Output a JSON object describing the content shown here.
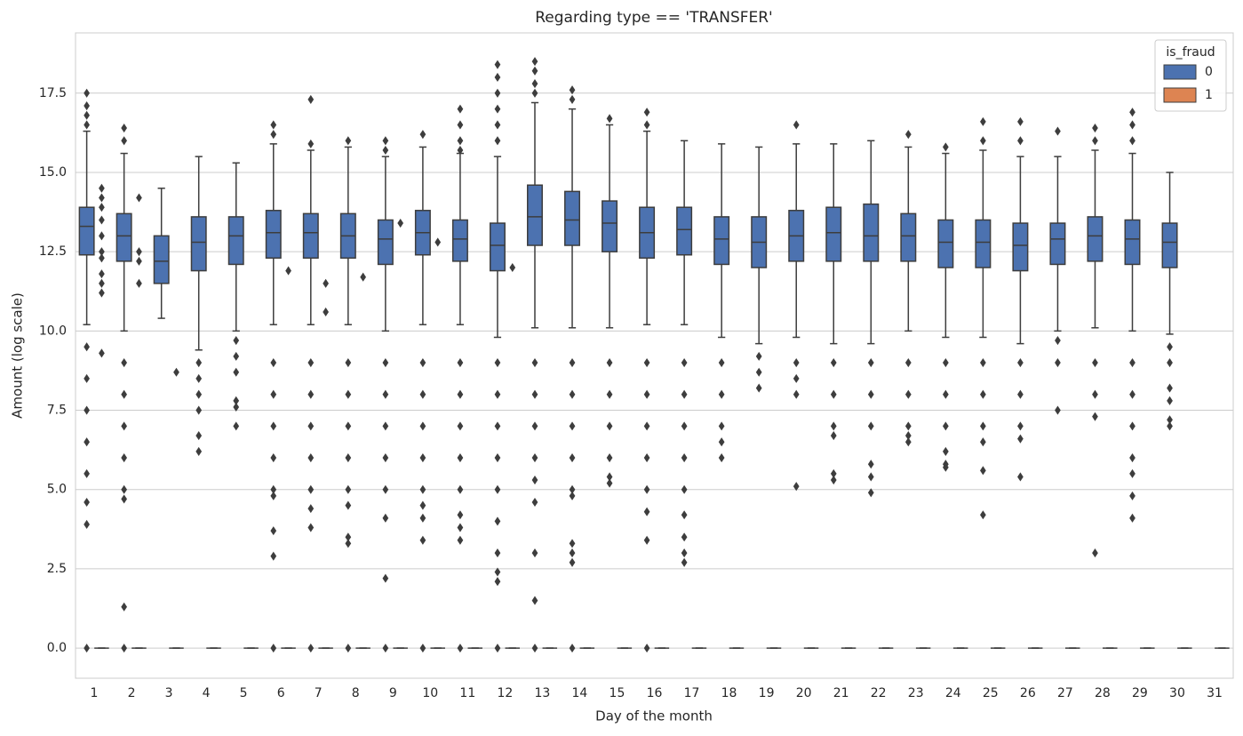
{
  "chart_data": {
    "type": "box",
    "title": "Regarding type == 'TRANSFER'",
    "x_label": "Day of the month",
    "y_label": "Amount (log scale)",
    "categories": [
      "1",
      "2",
      "3",
      "4",
      "5",
      "6",
      "7",
      "8",
      "9",
      "10",
      "11",
      "12",
      "13",
      "14",
      "15",
      "16",
      "17",
      "18",
      "19",
      "20",
      "21",
      "22",
      "23",
      "24",
      "25",
      "26",
      "27",
      "28",
      "29",
      "30",
      "31"
    ],
    "ylim": [
      -0.95,
      19.4
    ],
    "yticks": [
      {
        "value": 0,
        "label": "0.0"
      },
      {
        "value": 2.5,
        "label": "2.5"
      },
      {
        "value": 5,
        "label": "5.0"
      },
      {
        "value": 7.5,
        "label": "7.5"
      },
      {
        "value": 10,
        "label": "10.0"
      },
      {
        "value": 12.5,
        "label": "12.5"
      },
      {
        "value": 15,
        "label": "15.0"
      },
      {
        "value": 17.5,
        "label": "17.5"
      }
    ],
    "grid": true,
    "legend_title": "is_fraud",
    "legend_position": "upper right",
    "series": [
      {
        "name": "0",
        "color": "#4c72b0",
        "q1": [
          12.4,
          12.2,
          11.5,
          11.9,
          12.1,
          12.3,
          12.3,
          12.3,
          12.1,
          12.4,
          12.2,
          11.9,
          12.7,
          12.7,
          12.5,
          12.3,
          12.4,
          12.1,
          12.0,
          12.2,
          12.2,
          12.2,
          12.2,
          12.0,
          12.0,
          11.9,
          12.1,
          12.2,
          12.1,
          12.0,
          null
        ],
        "median": [
          13.3,
          13.0,
          12.2,
          12.8,
          13.0,
          13.1,
          13.1,
          13.0,
          12.9,
          13.1,
          12.9,
          12.7,
          13.6,
          13.5,
          13.4,
          13.1,
          13.2,
          12.9,
          12.8,
          13.0,
          13.1,
          13.0,
          13.0,
          12.8,
          12.8,
          12.7,
          12.9,
          13.0,
          12.9,
          12.8,
          null
        ],
        "q3": [
          13.9,
          13.7,
          13.0,
          13.6,
          13.6,
          13.8,
          13.7,
          13.7,
          13.5,
          13.8,
          13.5,
          13.4,
          14.6,
          14.4,
          14.1,
          13.9,
          13.9,
          13.6,
          13.6,
          13.8,
          13.9,
          14.0,
          13.7,
          13.5,
          13.5,
          13.4,
          13.4,
          13.6,
          13.5,
          13.4,
          null
        ],
        "whislo": [
          10.2,
          10.0,
          10.4,
          9.4,
          10.0,
          10.2,
          10.2,
          10.2,
          10.0,
          10.2,
          10.2,
          9.8,
          10.1,
          10.1,
          10.1,
          10.2,
          10.2,
          9.8,
          9.6,
          9.8,
          9.6,
          9.6,
          10.0,
          9.8,
          9.8,
          9.6,
          10.0,
          10.1,
          10.0,
          9.9,
          null
        ],
        "whishi": [
          16.3,
          15.6,
          14.5,
          15.5,
          15.3,
          15.9,
          15.7,
          15.8,
          15.5,
          15.8,
          15.6,
          15.5,
          17.2,
          17.0,
          16.5,
          16.3,
          16.0,
          15.9,
          15.8,
          15.9,
          15.9,
          16.0,
          15.8,
          15.6,
          15.7,
          15.5,
          15.5,
          15.7,
          15.6,
          15.0,
          null
        ],
        "outliers": [
          [
            17.5,
            17.1,
            16.8,
            16.5,
            9.5,
            8.5,
            7.5,
            6.5,
            5.5,
            4.6,
            3.9,
            0
          ],
          [
            16.4,
            16.0,
            9.0,
            8.0,
            7.0,
            6.0,
            5.0,
            4.7,
            1.3,
            0
          ],
          [],
          [
            9.0,
            8.5,
            8.0,
            7.5,
            6.7,
            6.2
          ],
          [
            9.7,
            9.2,
            8.7,
            7.8,
            7.6,
            7.0
          ],
          [
            16.5,
            16.2,
            9.0,
            8.0,
            7.0,
            6.0,
            5.0,
            4.8,
            3.7,
            2.9,
            0
          ],
          [
            17.3,
            15.9,
            9.0,
            8.0,
            7.0,
            6.0,
            5.0,
            4.4,
            3.8,
            0
          ],
          [
            16.0,
            9.0,
            8.0,
            7.0,
            6.0,
            5.0,
            4.5,
            3.5,
            3.3,
            0
          ],
          [
            16.0,
            15.7,
            9.0,
            8.0,
            7.0,
            6.0,
            5.0,
            4.1,
            2.2,
            0
          ],
          [
            16.2,
            9.0,
            8.0,
            7.0,
            6.0,
            5.0,
            4.5,
            4.1,
            3.4,
            0
          ],
          [
            17.0,
            16.5,
            16.0,
            15.7,
            9.0,
            8.0,
            7.0,
            6.0,
            5.0,
            4.2,
            3.8,
            3.4,
            0
          ],
          [
            18.4,
            18.0,
            17.5,
            17.0,
            16.5,
            16.0,
            9.0,
            8.0,
            7.0,
            6.0,
            5.0,
            4.0,
            3.0,
            2.4,
            2.1,
            0
          ],
          [
            18.5,
            18.2,
            17.8,
            17.5,
            9.0,
            8.0,
            7.0,
            6.0,
            5.3,
            4.6,
            3.0,
            1.5,
            0
          ],
          [
            17.6,
            17.3,
            9.0,
            8.0,
            7.0,
            6.0,
            5.0,
            4.8,
            3.3,
            3.0,
            2.7,
            0
          ],
          [
            16.7,
            9.0,
            8.0,
            7.0,
            6.0,
            5.4,
            5.2
          ],
          [
            16.9,
            16.5,
            9.0,
            8.0,
            7.0,
            6.0,
            5.0,
            4.3,
            3.4,
            0
          ],
          [
            9.0,
            8.0,
            7.0,
            6.0,
            5.0,
            4.2,
            3.5,
            3.0,
            2.7
          ],
          [
            9.0,
            8.0,
            7.0,
            6.5,
            6.0
          ],
          [
            9.2,
            8.7,
            8.2
          ],
          [
            16.5,
            9.0,
            8.5,
            8.0,
            5.1
          ],
          [
            9.0,
            8.0,
            7.0,
            6.7,
            5.5,
            5.3
          ],
          [
            9.0,
            8.0,
            7.0,
            5.8,
            5.4,
            4.9
          ],
          [
            16.2,
            9.0,
            8.0,
            7.0,
            6.7,
            6.5
          ],
          [
            15.8,
            9.0,
            8.0,
            7.0,
            6.2,
            5.8,
            5.7
          ],
          [
            16.6,
            16.0,
            9.0,
            8.0,
            7.0,
            6.5,
            5.6,
            4.2
          ],
          [
            16.6,
            16.0,
            9.0,
            8.0,
            7.0,
            6.6,
            5.4
          ],
          [
            16.3,
            9.7,
            9.0,
            7.5
          ],
          [
            16.4,
            16.0,
            9.0,
            8.0,
            7.3,
            3.0
          ],
          [
            16.9,
            16.5,
            16.0,
            9.0,
            8.0,
            7.0,
            6.0,
            5.5,
            4.8,
            4.1
          ],
          [
            9.5,
            9.0,
            8.2,
            7.8,
            7.2,
            7.0
          ],
          []
        ]
      },
      {
        "name": "1",
        "color": "#dd8452",
        "q1": [
          0,
          0,
          0,
          0,
          0,
          0,
          0,
          0,
          0,
          0,
          0,
          0,
          0,
          0,
          0,
          0,
          0,
          0,
          0,
          0,
          0,
          0,
          0,
          0,
          0,
          0,
          0,
          0,
          0,
          0,
          0
        ],
        "median": [
          0,
          0,
          0,
          0,
          0,
          0,
          0,
          0,
          0,
          0,
          0,
          0,
          0,
          0,
          0,
          0,
          0,
          0,
          0,
          0,
          0,
          0,
          0,
          0,
          0,
          0,
          0,
          0,
          0,
          0,
          0
        ],
        "q3": [
          0,
          0,
          0,
          0,
          0,
          0,
          0,
          0,
          0,
          0,
          0,
          0,
          0,
          0,
          0,
          0,
          0,
          0,
          0,
          0,
          0,
          0,
          0,
          0,
          0,
          0,
          0,
          0,
          0,
          0,
          0
        ],
        "whislo": [
          0,
          0,
          0,
          0,
          0,
          0,
          0,
          0,
          0,
          0,
          0,
          0,
          0,
          0,
          0,
          0,
          0,
          0,
          0,
          0,
          0,
          0,
          0,
          0,
          0,
          0,
          0,
          0,
          0,
          0,
          0
        ],
        "whishi": [
          0,
          0,
          0,
          0,
          0,
          0,
          0,
          0,
          0,
          0,
          0,
          0,
          0,
          0,
          0,
          0,
          0,
          0,
          0,
          0,
          0,
          0,
          0,
          0,
          0,
          0,
          0,
          0,
          0,
          0,
          0
        ],
        "outliers": [
          [
            14.5,
            14.2,
            13.9,
            13.5,
            13.0,
            12.5,
            12.3,
            11.8,
            11.5,
            11.2,
            9.3
          ],
          [
            14.2,
            12.5,
            12.2,
            11.5
          ],
          [
            8.7
          ],
          [],
          [],
          [
            11.9
          ],
          [
            11.5,
            10.6
          ],
          [
            11.7
          ],
          [
            13.4
          ],
          [
            12.8
          ],
          [],
          [
            12.0
          ],
          [],
          [],
          [],
          [],
          [],
          [],
          [],
          [],
          [],
          [],
          [],
          [],
          [],
          [],
          [],
          [],
          [],
          [],
          []
        ]
      }
    ]
  }
}
